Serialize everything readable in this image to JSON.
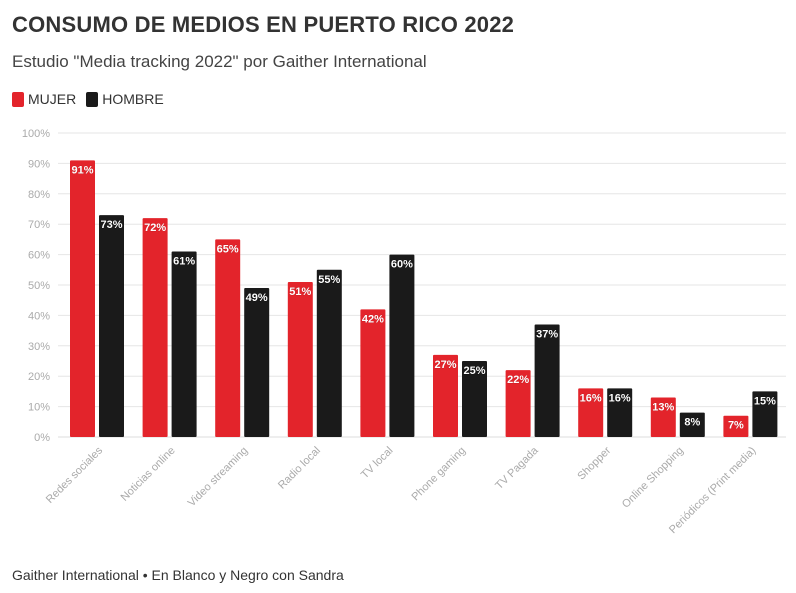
{
  "title": "CONSUMO DE MEDIOS EN PUERTO RICO 2022",
  "subtitle": "Estudio \"Media tracking 2022\" por Gaither International",
  "footer": "Gaither International • En Blanco y Negro con Sandra",
  "colors": {
    "mujer": "#e3242b",
    "hombre": "#1a1a1a",
    "grid": "#e6e6e6",
    "tick": "#aaaaaa"
  },
  "chart_data": {
    "type": "bar",
    "categories": [
      "Redes sociales",
      "Noticias online",
      "Video streaming",
      "Radio local",
      "TV local",
      "Phone gaming",
      "TV Pagada",
      "Shopper",
      "Online Shopping",
      "Periódicos (Print media)"
    ],
    "series": [
      {
        "name": "MUJER",
        "values": [
          91,
          72,
          65,
          51,
          42,
          27,
          22,
          16,
          13,
          7
        ]
      },
      {
        "name": "HOMBRE",
        "values": [
          73,
          61,
          49,
          55,
          60,
          25,
          37,
          16,
          8,
          15
        ]
      }
    ],
    "data_labels": [
      [
        "91%",
        "72%",
        "65%",
        "51%",
        "42%",
        "27%",
        "22%",
        "16%",
        "13%",
        "7%"
      ],
      [
        "73%",
        "61%",
        "49%",
        "55%",
        "60%",
        "25%",
        "37%",
        "16%",
        "8%",
        "15%"
      ]
    ],
    "y_ticks": [
      "0%",
      "10%",
      "20%",
      "30%",
      "40%",
      "50%",
      "60%",
      "70%",
      "80%",
      "90%",
      "100%"
    ],
    "ylim": [
      0,
      100
    ],
    "grid": true,
    "legend_position": "top-left"
  }
}
